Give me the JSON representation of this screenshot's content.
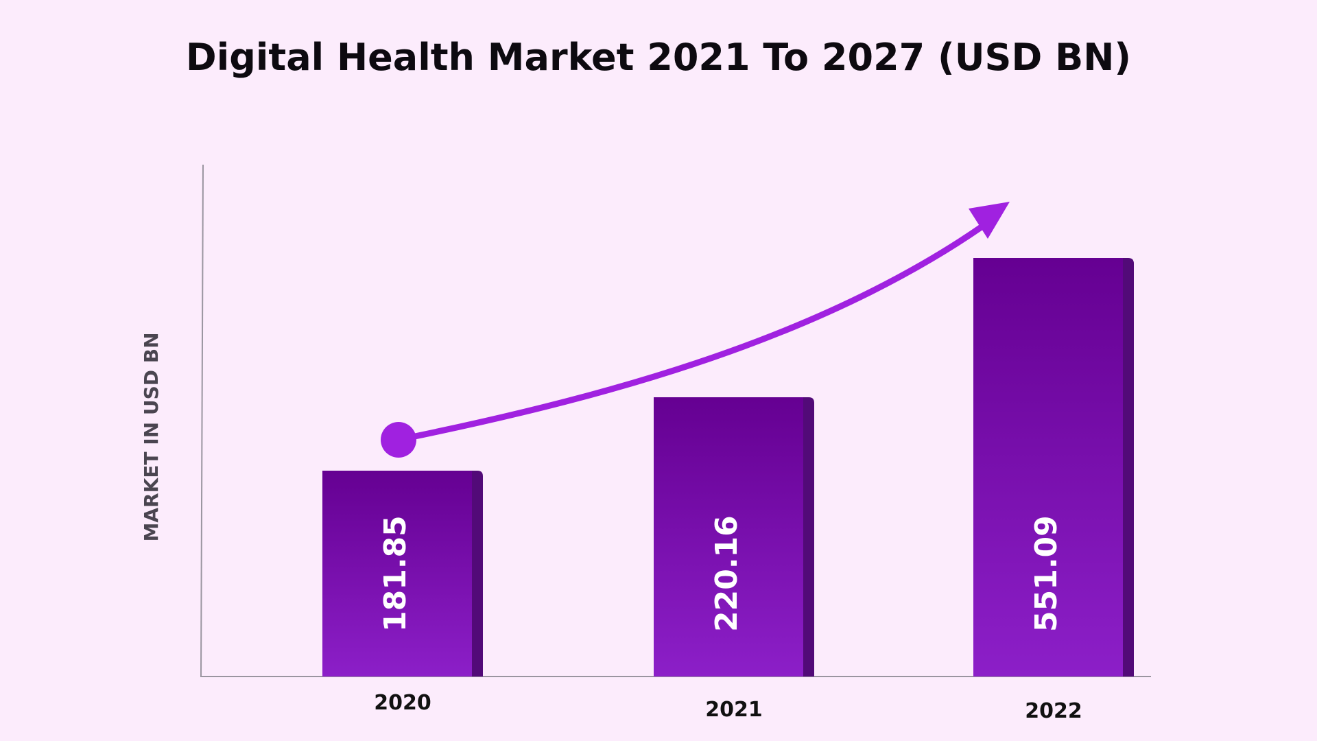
{
  "colors": {
    "background": "#fcecfc",
    "bar_top": "#650092",
    "bar_bottom": "#8c1fc8",
    "bar_side": "#520a78",
    "accent": "#a021e0",
    "axis": "#9a95a0"
  },
  "chart_data": {
    "type": "bar",
    "title": "Digital Health Market 2021 To 2027 (USD BN)",
    "xlabel": "",
    "ylabel": "MARKET IN USD BN",
    "categories": [
      "2020",
      "2021",
      "2022"
    ],
    "values": [
      181.85,
      220.16,
      551.09
    ],
    "value_labels": [
      "181.85",
      "220.16",
      "551.09"
    ],
    "trend_arrow": true,
    "grid": false,
    "legend": "none"
  }
}
